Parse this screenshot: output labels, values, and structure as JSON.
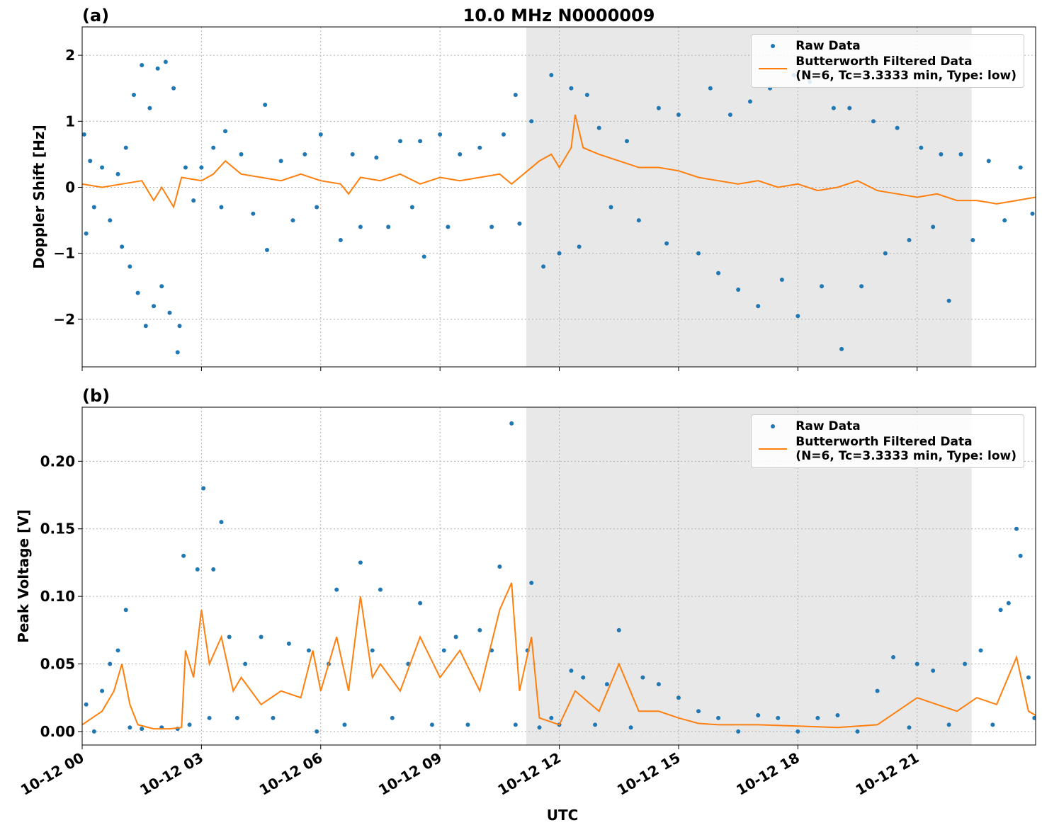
{
  "chart_data": [
    {
      "type": "scatter_line",
      "panel_label": "(a)",
      "title": "10.0 MHz N0000009",
      "y_label": "Doppler Shift [Hz]",
      "xlim": [
        0,
        23.98
      ],
      "xticks": [
        0,
        3,
        6,
        9,
        12,
        15,
        18,
        21
      ],
      "ylim": [
        -2.72,
        2.43
      ],
      "yticks": [
        {
          "value": -2,
          "label": "−2"
        },
        {
          "value": -1,
          "label": "−1"
        },
        0,
        1,
        2
      ],
      "grid": true,
      "shaded_region": [
        11.17,
        22.37
      ],
      "legend": "upper right",
      "series": [
        {
          "name": "Raw Data",
          "color": "#1f77b4",
          "marker": "dot",
          "x": [
            0.05,
            0.1,
            0.2,
            0.3,
            0.5,
            0.7,
            0.9,
            1.0,
            1.1,
            1.2,
            1.3,
            1.4,
            1.5,
            1.6,
            1.7,
            1.8,
            1.9,
            2.0,
            2.1,
            2.2,
            2.3,
            2.4,
            2.45,
            2.6,
            2.8,
            3.0,
            3.3,
            3.5,
            3.6,
            4.0,
            4.3,
            4.6,
            4.65,
            5.0,
            5.3,
            5.6,
            5.9,
            6.0,
            6.5,
            6.8,
            7.0,
            7.4,
            7.7,
            8.0,
            8.3,
            8.5,
            8.6,
            9.0,
            9.2,
            9.5,
            10.0,
            10.3,
            10.6,
            10.9,
            11.0,
            11.3,
            11.6,
            11.8,
            12.0,
            12.3,
            12.5,
            12.7,
            13.0,
            13.3,
            13.7,
            14.0,
            14.5,
            14.7,
            15.0,
            15.5,
            15.8,
            16.0,
            16.3,
            16.5,
            16.8,
            17.0,
            17.3,
            17.6,
            17.9,
            18.0,
            18.3,
            18.6,
            18.9,
            19.1,
            19.3,
            19.6,
            19.9,
            20.2,
            20.5,
            20.8,
            21.1,
            21.4,
            21.6,
            21.8,
            22.1,
            22.4,
            22.8,
            23.2,
            23.6,
            23.9
          ],
          "values": [
            0.8,
            -0.7,
            0.4,
            -0.3,
            0.3,
            -0.5,
            0.2,
            -0.9,
            0.6,
            -1.2,
            1.4,
            -1.6,
            1.85,
            -2.1,
            1.2,
            -1.8,
            1.8,
            -1.5,
            1.9,
            -1.9,
            1.5,
            -2.5,
            -2.1,
            0.3,
            -0.2,
            0.3,
            0.6,
            -0.3,
            0.85,
            0.5,
            -0.4,
            1.25,
            -0.95,
            0.4,
            -0.5,
            0.5,
            -0.3,
            0.8,
            -0.8,
            0.5,
            -0.6,
            0.45,
            -0.6,
            0.7,
            -0.3,
            0.7,
            -1.05,
            0.8,
            -0.6,
            0.5,
            0.6,
            -0.6,
            0.8,
            1.4,
            -0.55,
            1.0,
            -1.2,
            1.7,
            -1.0,
            1.5,
            -0.9,
            1.4,
            0.9,
            -0.3,
            0.7,
            -0.5,
            1.2,
            -0.85,
            1.1,
            -1.0,
            1.5,
            -1.3,
            1.1,
            -1.55,
            1.3,
            -1.8,
            1.5,
            -1.4,
            1.7,
            -1.95,
            1.6,
            -1.5,
            1.2,
            -2.45,
            1.2,
            -1.5,
            1.0,
            -1.0,
            0.9,
            -0.8,
            0.6,
            -0.6,
            0.5,
            -1.72,
            0.5,
            -0.8,
            0.4,
            -0.5,
            0.3,
            -0.4
          ]
        },
        {
          "name": "Butterworth Filtered Data\n(N=6, Tc=3.3333 min, Type: low)",
          "color": "#ff7f0e",
          "x": [
            0,
            0.5,
            1,
            1.5,
            1.8,
            2,
            2.3,
            2.5,
            3,
            3.3,
            3.6,
            4,
            4.5,
            5,
            5.5,
            6,
            6.5,
            6.7,
            7,
            7.5,
            8,
            8.5,
            9,
            9.5,
            10,
            10.5,
            10.8,
            11.2,
            11.5,
            11.8,
            12,
            12.3,
            12.4,
            12.6,
            13,
            13.5,
            14,
            14.5,
            15,
            15.5,
            16,
            16.5,
            17,
            17.5,
            18,
            18.5,
            19,
            19.5,
            20,
            20.5,
            21,
            21.5,
            22,
            22.5,
            23,
            23.5,
            23.98
          ],
          "values": [
            0.05,
            0.0,
            0.05,
            0.1,
            -0.2,
            0.0,
            -0.3,
            0.15,
            0.1,
            0.2,
            0.4,
            0.2,
            0.15,
            0.1,
            0.2,
            0.1,
            0.05,
            -0.1,
            0.15,
            0.1,
            0.2,
            0.05,
            0.15,
            0.1,
            0.15,
            0.2,
            0.05,
            0.25,
            0.4,
            0.5,
            0.3,
            0.6,
            1.1,
            0.6,
            0.5,
            0.4,
            0.3,
            0.3,
            0.25,
            0.15,
            0.1,
            0.05,
            0.1,
            0.0,
            0.05,
            -0.05,
            0.0,
            0.1,
            -0.05,
            -0.1,
            -0.15,
            -0.1,
            -0.2,
            -0.2,
            -0.25,
            -0.2,
            -0.15
          ]
        }
      ]
    },
    {
      "type": "scatter_line",
      "panel_label": "(b)",
      "y_label": "Peak Voltage [V]",
      "x_label": "UTC",
      "xlim": [
        0,
        23.98
      ],
      "xticks": [
        {
          "value": 0,
          "label": "10-12 00"
        },
        {
          "value": 3,
          "label": "10-12 03"
        },
        {
          "value": 6,
          "label": "10-12 06"
        },
        {
          "value": 9,
          "label": "10-12 09"
        },
        {
          "value": 12,
          "label": "10-12 12"
        },
        {
          "value": 15,
          "label": "10-12 15"
        },
        {
          "value": 18,
          "label": "10-12 18"
        },
        {
          "value": 21,
          "label": "10-12 21"
        }
      ],
      "ylim": [
        -0.01,
        0.24
      ],
      "yticks": [
        {
          "value": 0,
          "label": "0.00"
        },
        0.05,
        {
          "value": 0.1,
          "label": "0.10"
        },
        0.15,
        {
          "value": 0.2,
          "label": "0.20"
        }
      ],
      "grid": true,
      "shaded_region": [
        11.17,
        22.37
      ],
      "legend": "upper right",
      "series": [
        {
          "name": "Raw Data",
          "color": "#1f77b4",
          "marker": "dot",
          "x": [
            0.1,
            0.3,
            0.5,
            0.7,
            0.9,
            1.1,
            1.2,
            1.5,
            2.0,
            2.4,
            2.55,
            2.7,
            2.9,
            3.05,
            3.2,
            3.3,
            3.5,
            3.7,
            3.9,
            4.1,
            4.5,
            4.8,
            5.2,
            5.7,
            5.9,
            6.2,
            6.4,
            6.6,
            7.0,
            7.3,
            7.5,
            7.8,
            8.2,
            8.5,
            8.8,
            9.1,
            9.4,
            9.7,
            10.0,
            10.3,
            10.5,
            10.8,
            10.9,
            11.2,
            11.3,
            11.5,
            11.8,
            12.0,
            12.3,
            12.6,
            12.9,
            13.2,
            13.5,
            13.8,
            14.1,
            14.5,
            15.0,
            15.5,
            16.0,
            16.5,
            17.0,
            17.5,
            18.0,
            18.5,
            19.0,
            19.5,
            20.0,
            20.4,
            20.8,
            21.0,
            21.4,
            21.8,
            22.2,
            22.6,
            22.9,
            23.1,
            23.3,
            23.5,
            23.6,
            23.8,
            23.95
          ],
          "values": [
            0.02,
            0.0,
            0.03,
            0.05,
            0.06,
            0.09,
            0.003,
            0.002,
            0.003,
            0.002,
            0.13,
            0.005,
            0.12,
            0.18,
            0.01,
            0.12,
            0.155,
            0.07,
            0.01,
            0.05,
            0.07,
            0.01,
            0.065,
            0.06,
            0.0,
            0.05,
            0.105,
            0.005,
            0.125,
            0.06,
            0.105,
            0.01,
            0.05,
            0.095,
            0.005,
            0.06,
            0.07,
            0.005,
            0.075,
            0.06,
            0.122,
            0.228,
            0.005,
            0.06,
            0.11,
            0.003,
            0.01,
            0.005,
            0.045,
            0.04,
            0.005,
            0.035,
            0.075,
            0.003,
            0.04,
            0.035,
            0.025,
            0.015,
            0.01,
            0.0,
            0.012,
            0.01,
            0.0,
            0.01,
            0.012,
            0.0,
            0.03,
            0.055,
            0.003,
            0.05,
            0.045,
            0.005,
            0.05,
            0.06,
            0.005,
            0.09,
            0.095,
            0.15,
            0.13,
            0.04,
            0.01
          ]
        },
        {
          "name": "Butterworth Filtered Data\n(N=6, Tc=3.3333 min, Type: low)",
          "color": "#ff7f0e",
          "x": [
            0,
            0.5,
            0.8,
            1,
            1.2,
            1.4,
            1.8,
            2.2,
            2.5,
            2.6,
            2.8,
            3,
            3.2,
            3.5,
            3.8,
            4,
            4.5,
            5,
            5.5,
            5.8,
            6,
            6.4,
            6.7,
            7,
            7.3,
            7.5,
            8,
            8.5,
            9,
            9.5,
            10,
            10.5,
            10.8,
            11,
            11.3,
            11.5,
            12,
            12.4,
            12.8,
            13,
            13.5,
            14,
            14.5,
            15,
            15.5,
            16,
            17,
            18,
            19,
            20,
            20.5,
            21,
            21.5,
            22,
            22.5,
            23,
            23.5,
            23.8,
            23.98
          ],
          "values": [
            0.005,
            0.015,
            0.03,
            0.05,
            0.02,
            0.005,
            0.002,
            0.002,
            0.003,
            0.06,
            0.04,
            0.09,
            0.05,
            0.07,
            0.03,
            0.04,
            0.02,
            0.03,
            0.025,
            0.06,
            0.03,
            0.07,
            0.03,
            0.1,
            0.04,
            0.05,
            0.03,
            0.07,
            0.04,
            0.06,
            0.03,
            0.09,
            0.11,
            0.03,
            0.07,
            0.01,
            0.005,
            0.03,
            0.02,
            0.015,
            0.05,
            0.015,
            0.015,
            0.01,
            0.006,
            0.005,
            0.005,
            0.004,
            0.003,
            0.005,
            0.015,
            0.025,
            0.02,
            0.015,
            0.025,
            0.02,
            0.055,
            0.015,
            0.012
          ]
        }
      ]
    }
  ]
}
